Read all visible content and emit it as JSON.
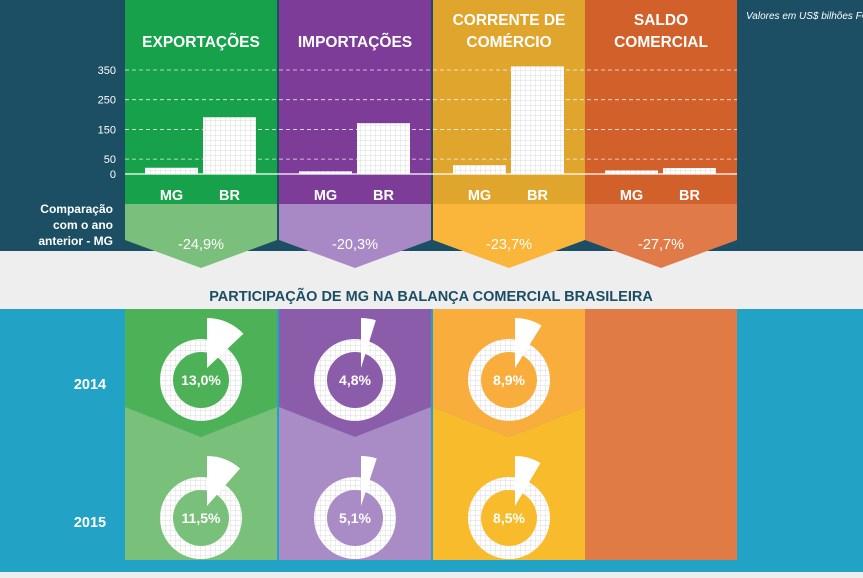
{
  "note": "Valores em US$ bilhões FOB",
  "comparison_label": [
    "Comparação",
    "com o ano",
    "anterior - MG"
  ],
  "section_title": "PARTICIPAÇÃO DE MG NA BALANÇA COMERCIAL BRASILEIRA",
  "years": [
    "2014",
    "2015"
  ],
  "colors": {
    "top_background": "#1c4e64",
    "bottom_background": "#22a2c4",
    "band": "#eeeeee",
    "title_text": "#1c4e64"
  },
  "columns": [
    {
      "title": [
        "EXPORTAÇÕES"
      ],
      "color": "#16a14a",
      "light": "#7bbf7c",
      "mid": "#4db157",
      "pale": "#79c07a",
      "comparison": "-24,9%",
      "share": [
        {
          "year": "2014",
          "value": 13.0,
          "label": "13,0%"
        },
        {
          "year": "2015",
          "value": 11.5,
          "label": "11,5%"
        }
      ]
    },
    {
      "title": [
        "IMPORTAÇÕES"
      ],
      "color": "#7d3c98",
      "light": "#a889c5",
      "mid": "#8b5ca9",
      "pale": "#a98bc6",
      "comparison": "-20,3%",
      "share": [
        {
          "year": "2014",
          "value": 4.8,
          "label": "4,8%"
        },
        {
          "year": "2015",
          "value": 5.1,
          "label": "5,1%"
        }
      ]
    },
    {
      "title": [
        "CORRENTE DE",
        "COMÉRCIO"
      ],
      "color": "#e0a52d",
      "light": "#f9b63a",
      "mid": "#f9ad3d",
      "pale": "#f8bb2b",
      "comparison": "-23,7%",
      "share": [
        {
          "year": "2014",
          "value": 8.9,
          "label": "8,9%"
        },
        {
          "year": "2015",
          "value": 8.5,
          "label": "8,5%"
        }
      ]
    },
    {
      "title": [
        "SALDO",
        "COMERCIAL"
      ],
      "color": "#d2602b",
      "light": "#e07a48",
      "mid": "#e07b45",
      "pale": "#e07b45",
      "comparison": "-27,7%",
      "share": []
    }
  ],
  "chart_data": {
    "type": "bar",
    "categories": [
      "MG",
      "BR"
    ],
    "ylim": [
      0,
      360
    ],
    "yticks": [
      0,
      50,
      150,
      250,
      350
    ],
    "panels": [
      {
        "name": "EXPORTAÇÕES",
        "values": [
          21,
          191
        ]
      },
      {
        "name": "IMPORTAÇÕES",
        "values": [
          9,
          171
        ]
      },
      {
        "name": "CORRENTE DE COMÉRCIO",
        "values": [
          30,
          362
        ]
      },
      {
        "name": "SALDO COMERCIAL",
        "values": [
          12,
          20
        ]
      }
    ]
  }
}
